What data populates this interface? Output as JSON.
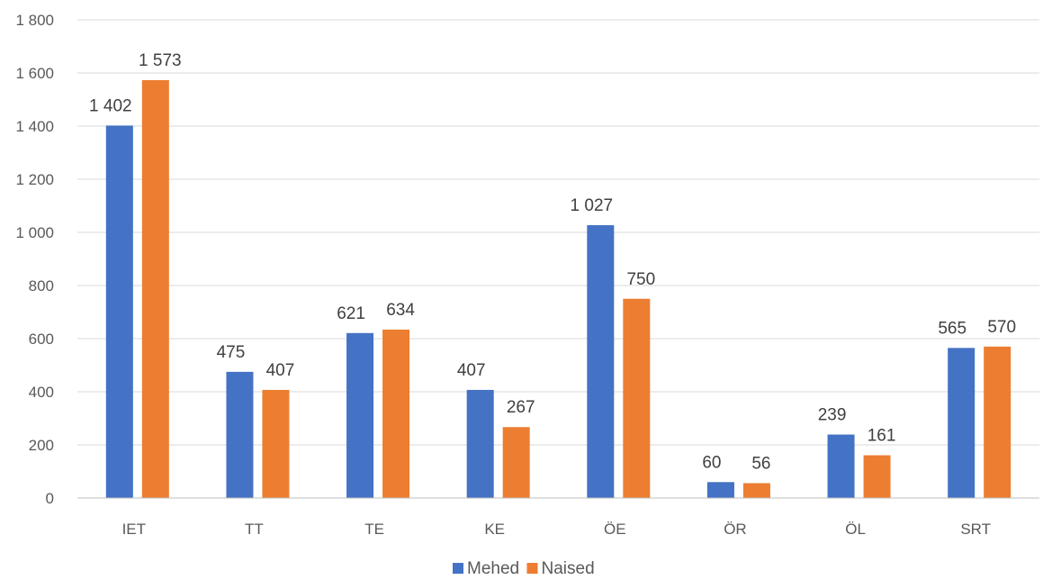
{
  "chart_data": {
    "type": "bar",
    "title": "",
    "xlabel": "",
    "ylabel": "",
    "categories": [
      "IET",
      "TT",
      "TE",
      "KE",
      "ÖE",
      "ÖR",
      "ÖL",
      "SRT"
    ],
    "series": [
      {
        "name": "Mehed",
        "color": "#4472c4",
        "values": [
          1402,
          475,
          621,
          407,
          1027,
          60,
          239,
          565
        ],
        "labels": [
          "1 402",
          "475",
          "621",
          "407",
          "1 027",
          "60",
          "239",
          "565"
        ]
      },
      {
        "name": "Naised",
        "color": "#ed7d31",
        "values": [
          1573,
          407,
          634,
          267,
          750,
          56,
          161,
          570
        ],
        "labels": [
          "1 573",
          "407",
          "634",
          "267",
          "750",
          "56",
          "161",
          "570"
        ]
      }
    ],
    "ylim": [
      0,
      1800
    ],
    "yticks": [
      0,
      200,
      400,
      600,
      800,
      1000,
      1200,
      1400,
      1600,
      1800
    ],
    "ytick_labels": [
      "0",
      "200",
      "400",
      "600",
      "800",
      "1 000",
      "1 200",
      "1 400",
      "1 600",
      "1 800"
    ],
    "grid": true,
    "legend_position": "bottom-center"
  }
}
